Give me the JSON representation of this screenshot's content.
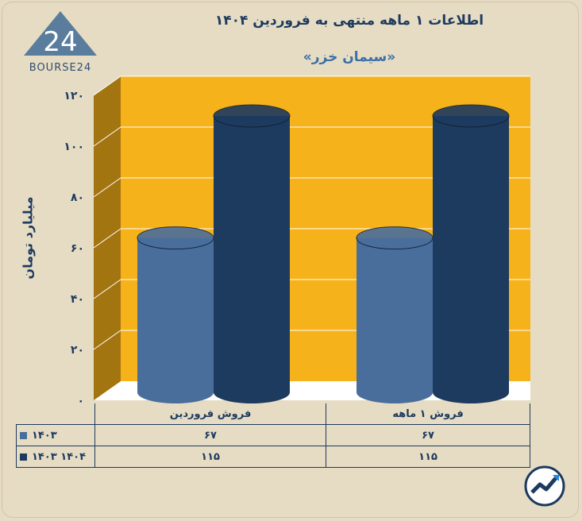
{
  "header": {
    "title": "اطلاعات ۱ ماهه منتهی به فروردین ۱۴۰۴",
    "subtitle": "«سیمان خزر»",
    "logo_text": "BOURSE24"
  },
  "colors": {
    "background": "#e6dcc3",
    "plot_back": "#f6b21a",
    "plot_side": "#a37510",
    "series_1403": "#4a6e9c",
    "series_1404": "#1d3a5f"
  },
  "chart_data": {
    "type": "bar",
    "categories": [
      "فروش ۱ ماهه",
      "فروش فروردین"
    ],
    "series": [
      {
        "name": "۱۴۰۳",
        "values": [
          67,
          67
        ]
      },
      {
        "name": "۱۴۰۳ ۱۴۰۴",
        "values": [
          115,
          115
        ]
      }
    ],
    "ylabel": "میلیارد تومان",
    "ylim": [
      0,
      120
    ],
    "yticks": [
      "۰",
      "۲۰",
      "۴۰",
      "۶۰",
      "۸۰",
      "۱۰۰",
      "۱۲۰"
    ],
    "grid": true,
    "legend": "bottom data table"
  },
  "table": {
    "rows": [
      {
        "label": "۱۴۰۳",
        "cells": [
          "۶۷",
          "۶۷"
        ]
      },
      {
        "label": "۱۴۰۳ ۱۴۰۴",
        "cells": [
          "۱۱۵",
          "۱۱۵"
        ]
      }
    ]
  },
  "icons": {
    "logo": "bourse24-logo-icon",
    "badge": "rising-chart-badge-icon"
  }
}
